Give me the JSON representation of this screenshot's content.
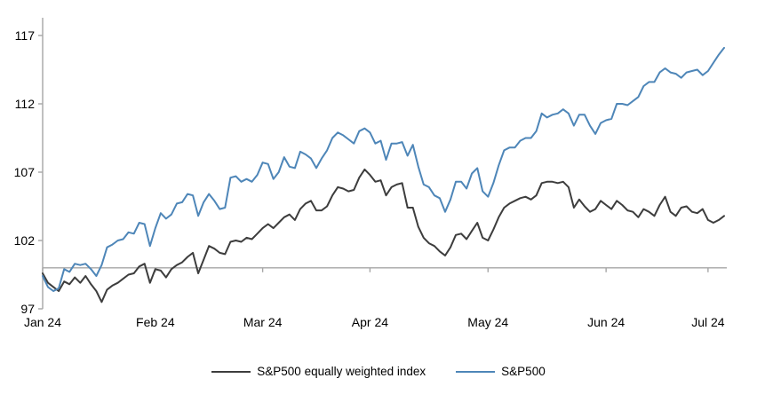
{
  "chart_data": {
    "type": "line",
    "title": "",
    "x_axis": {
      "tick_labels": [
        "Jan 24",
        "Feb 24",
        "Mar 24",
        "Apr 24",
        "May 24",
        "Jun 24",
        "Jul 24"
      ],
      "month_start_indices": [
        0,
        21,
        41,
        61,
        83,
        105,
        124
      ]
    },
    "y_axis": {
      "ticks": [
        97,
        102,
        107,
        112,
        117
      ],
      "range": [
        97,
        117
      ]
    },
    "baseline_value": 100,
    "grid": false,
    "legend_position": "bottom-center",
    "series": [
      {
        "name": "S&P500 equally weighted index",
        "color": "#3d3d3d",
        "values": [
          99.6,
          98.9,
          98.6,
          98.3,
          99.0,
          98.8,
          99.3,
          98.9,
          99.4,
          98.8,
          98.3,
          97.5,
          98.4,
          98.7,
          98.9,
          99.2,
          99.5,
          99.6,
          100.1,
          100.3,
          98.9,
          99.9,
          99.8,
          99.3,
          99.9,
          100.2,
          100.4,
          100.8,
          101.1,
          99.6,
          100.6,
          101.6,
          101.4,
          101.1,
          101.0,
          101.9,
          102.0,
          101.9,
          102.2,
          102.1,
          102.5,
          102.9,
          103.2,
          102.9,
          103.3,
          103.7,
          103.9,
          103.5,
          104.3,
          104.7,
          104.9,
          104.2,
          104.2,
          104.5,
          105.3,
          105.9,
          105.8,
          105.6,
          105.7,
          106.6,
          107.2,
          106.8,
          106.3,
          106.4,
          105.3,
          105.9,
          106.1,
          106.2,
          104.4,
          104.4,
          103.0,
          102.2,
          101.8,
          101.6,
          101.2,
          100.9,
          101.5,
          102.4,
          102.5,
          102.1,
          102.7,
          103.3,
          102.2,
          102.0,
          102.8,
          103.7,
          104.4,
          104.7,
          104.9,
          105.1,
          105.2,
          105.0,
          105.3,
          106.2,
          106.3,
          106.3,
          106.2,
          106.3,
          105.9,
          104.4,
          105.0,
          104.5,
          104.1,
          104.3,
          104.9,
          104.6,
          104.3,
          104.9,
          104.6,
          104.2,
          104.1,
          103.7,
          104.3,
          104.1,
          103.8,
          104.6,
          105.2,
          104.1,
          103.8,
          104.4,
          104.5,
          104.1,
          104.0,
          104.3,
          103.5,
          103.3,
          103.5,
          103.8
        ]
      },
      {
        "name": "S&P500",
        "color": "#4e86b8",
        "values": [
          99.4,
          98.6,
          98.3,
          98.5,
          99.9,
          99.7,
          100.3,
          100.2,
          100.3,
          99.9,
          99.4,
          100.2,
          101.5,
          101.7,
          102.0,
          102.1,
          102.6,
          102.5,
          103.3,
          103.2,
          101.6,
          102.9,
          104.0,
          103.6,
          103.9,
          104.7,
          104.8,
          105.4,
          105.3,
          103.8,
          104.8,
          105.4,
          104.9,
          104.3,
          104.4,
          106.6,
          106.7,
          106.3,
          106.5,
          106.3,
          106.8,
          107.7,
          107.6,
          106.5,
          107.0,
          108.1,
          107.4,
          107.3,
          108.5,
          108.3,
          108.0,
          107.3,
          108.0,
          108.6,
          109.5,
          109.9,
          109.7,
          109.4,
          109.1,
          110.0,
          110.2,
          109.9,
          109.1,
          109.3,
          107.9,
          109.1,
          109.1,
          109.2,
          108.2,
          109.0,
          107.4,
          106.1,
          105.9,
          105.3,
          105.1,
          104.1,
          105.0,
          106.3,
          106.3,
          105.8,
          106.9,
          107.3,
          105.6,
          105.2,
          106.2,
          107.5,
          108.6,
          108.8,
          108.8,
          109.3,
          109.5,
          109.5,
          110.0,
          111.3,
          111.0,
          111.2,
          111.3,
          111.6,
          111.3,
          110.4,
          111.2,
          111.2,
          110.4,
          109.8,
          110.6,
          110.8,
          110.9,
          112.0,
          112.0,
          111.9,
          112.2,
          112.5,
          113.3,
          113.6,
          113.6,
          114.3,
          114.6,
          114.3,
          114.2,
          113.9,
          114.3,
          114.4,
          114.5,
          114.1,
          114.4,
          115.0,
          115.6,
          116.1
        ]
      }
    ]
  },
  "style": {
    "axis_color": "#a6a6a6",
    "text_color": "#000000",
    "background": "#ffffff"
  }
}
